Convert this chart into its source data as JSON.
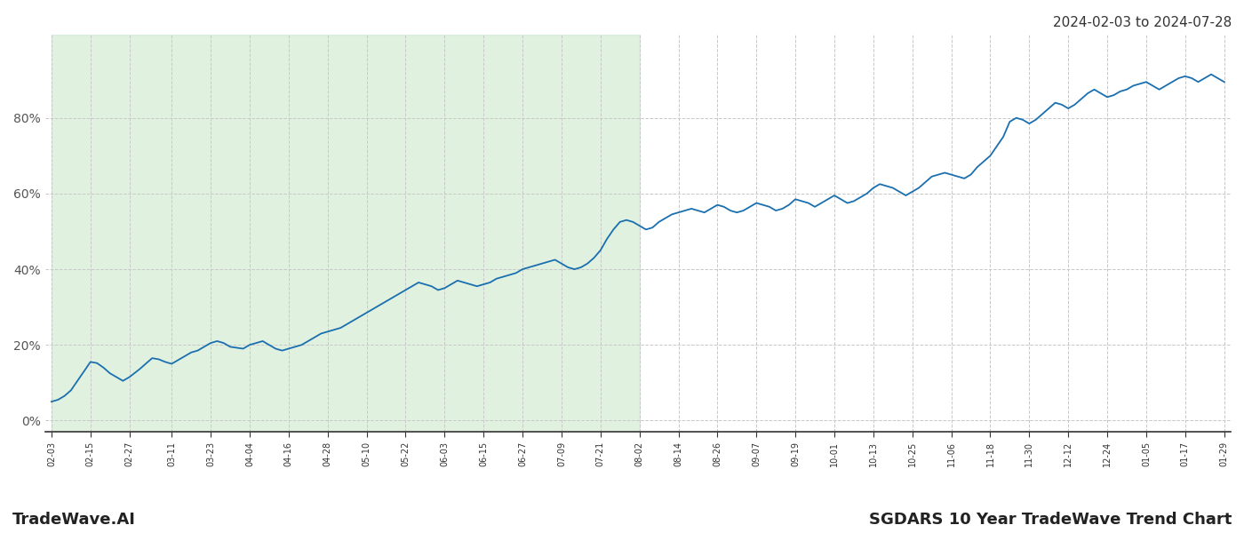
{
  "title_bottom": "SGDARS 10 Year TradeWave Trend Chart",
  "title_top_right": "2024-02-03 to 2024-07-28",
  "watermark": "TradeWave.AI",
  "line_color": "#1a6faf",
  "line_width": 1.3,
  "shade_color": "#c8e6c8",
  "shade_alpha": 0.55,
  "background_color": "#ffffff",
  "grid_color": "#c8c8c8",
  "grid_style": "--",
  "ylim": [
    -3,
    102
  ],
  "yticks": [
    0,
    20,
    40,
    60,
    80
  ],
  "ytick_labels": [
    "0%",
    "20%",
    "40%",
    "60%",
    "80%"
  ],
  "shade_date_start": "2024-02-03",
  "shade_date_end": "2024-08-02",
  "date_start": "2024-02-03",
  "date_end": "2025-01-29",
  "tick_interval_days": 6,
  "y_values_dates": [
    "2024-02-03",
    "2024-02-05",
    "2024-02-07",
    "2024-02-09",
    "2024-02-11",
    "2024-02-13",
    "2024-02-15",
    "2024-02-17",
    "2024-02-19",
    "2024-02-21",
    "2024-02-23",
    "2024-02-25",
    "2024-02-27",
    "2024-03-01",
    "2024-03-03",
    "2024-03-05",
    "2024-03-07",
    "2024-03-09",
    "2024-03-11",
    "2024-03-13",
    "2024-03-15",
    "2024-03-17",
    "2024-03-19",
    "2024-03-21",
    "2024-03-23",
    "2024-03-25",
    "2024-03-27",
    "2024-03-29",
    "2024-04-02",
    "2024-04-04",
    "2024-04-06",
    "2024-04-08",
    "2024-04-10",
    "2024-04-12",
    "2024-04-14",
    "2024-04-16",
    "2024-04-18",
    "2024-04-20",
    "2024-04-22",
    "2024-04-24",
    "2024-04-26",
    "2024-04-28",
    "2024-04-30",
    "2024-05-02",
    "2024-05-04",
    "2024-05-06",
    "2024-05-08",
    "2024-05-10",
    "2024-05-12",
    "2024-05-14",
    "2024-05-16",
    "2024-05-18",
    "2024-05-20",
    "2024-05-22",
    "2024-05-24",
    "2024-05-26",
    "2024-05-28",
    "2024-05-30",
    "2024-06-01",
    "2024-06-03",
    "2024-06-05",
    "2024-06-07",
    "2024-06-09",
    "2024-06-11",
    "2024-06-13",
    "2024-06-15",
    "2024-06-17",
    "2024-06-19",
    "2024-06-21",
    "2024-06-23",
    "2024-06-25",
    "2024-06-27",
    "2024-06-29",
    "2024-07-01",
    "2024-07-03",
    "2024-07-05",
    "2024-07-07",
    "2024-07-09",
    "2024-07-11",
    "2024-07-13",
    "2024-07-15",
    "2024-07-17",
    "2024-07-19",
    "2024-07-21",
    "2024-07-23",
    "2024-07-25",
    "2024-07-27",
    "2024-07-29",
    "2024-07-31",
    "2024-08-02",
    "2024-08-04",
    "2024-08-06",
    "2024-08-08",
    "2024-08-10",
    "2024-08-12",
    "2024-08-14",
    "2024-08-16",
    "2024-08-18",
    "2024-08-20",
    "2024-08-22",
    "2024-08-24",
    "2024-08-26",
    "2024-08-28",
    "2024-08-30",
    "2024-09-01",
    "2024-09-03",
    "2024-09-05",
    "2024-09-07",
    "2024-09-09",
    "2024-09-11",
    "2024-09-13",
    "2024-09-15",
    "2024-09-17",
    "2024-09-19",
    "2024-09-21",
    "2024-09-23",
    "2024-09-25",
    "2024-09-27",
    "2024-09-29",
    "2024-10-01",
    "2024-10-03",
    "2024-10-05",
    "2024-10-07",
    "2024-10-09",
    "2024-10-11",
    "2024-10-13",
    "2024-10-15",
    "2024-10-17",
    "2024-10-19",
    "2024-10-21",
    "2024-10-23",
    "2024-10-25",
    "2024-10-27",
    "2024-10-29",
    "2024-10-31",
    "2024-11-02",
    "2024-11-04",
    "2024-11-06",
    "2024-11-08",
    "2024-11-10",
    "2024-11-12",
    "2024-11-14",
    "2024-11-16",
    "2024-11-18",
    "2024-11-20",
    "2024-11-22",
    "2024-11-24",
    "2024-11-26",
    "2024-11-28",
    "2024-11-30",
    "2024-12-02",
    "2024-12-04",
    "2024-12-06",
    "2024-12-08",
    "2024-12-10",
    "2024-12-12",
    "2024-12-14",
    "2024-12-16",
    "2024-12-18",
    "2024-12-20",
    "2024-12-22",
    "2024-12-24",
    "2024-12-26",
    "2024-12-28",
    "2024-12-30",
    "2025-01-01",
    "2025-01-03",
    "2025-01-05",
    "2025-01-07",
    "2025-01-09",
    "2025-01-11",
    "2025-01-13",
    "2025-01-15",
    "2025-01-17",
    "2025-01-19",
    "2025-01-21",
    "2025-01-23",
    "2025-01-25",
    "2025-01-27",
    "2025-01-29"
  ],
  "y_values": [
    5.0,
    5.5,
    6.5,
    8.0,
    10.5,
    13.0,
    15.5,
    15.2,
    14.0,
    12.5,
    11.5,
    10.5,
    11.5,
    13.5,
    15.0,
    16.5,
    16.2,
    15.5,
    15.0,
    16.0,
    17.0,
    18.0,
    18.5,
    19.5,
    20.5,
    21.0,
    20.5,
    19.5,
    19.0,
    20.0,
    20.5,
    21.0,
    20.0,
    19.0,
    18.5,
    19.0,
    19.5,
    20.0,
    21.0,
    22.0,
    23.0,
    23.5,
    24.0,
    24.5,
    25.5,
    26.5,
    27.5,
    28.5,
    29.5,
    30.5,
    31.5,
    32.5,
    33.5,
    34.5,
    35.5,
    36.5,
    36.0,
    35.5,
    34.5,
    35.0,
    36.0,
    37.0,
    36.5,
    36.0,
    35.5,
    36.0,
    36.5,
    37.5,
    38.0,
    38.5,
    39.0,
    40.0,
    40.5,
    41.0,
    41.5,
    42.0,
    42.5,
    41.5,
    40.5,
    40.0,
    40.5,
    41.5,
    43.0,
    45.0,
    48.0,
    50.5,
    52.5,
    53.0,
    52.5,
    51.5,
    50.5,
    51.0,
    52.5,
    53.5,
    54.5,
    55.0,
    55.5,
    56.0,
    55.5,
    55.0,
    56.0,
    57.0,
    56.5,
    55.5,
    55.0,
    55.5,
    56.5,
    57.5,
    57.0,
    56.5,
    55.5,
    56.0,
    57.0,
    58.5,
    58.0,
    57.5,
    56.5,
    57.5,
    58.5,
    59.5,
    58.5,
    57.5,
    58.0,
    59.0,
    60.0,
    61.5,
    62.5,
    62.0,
    61.5,
    60.5,
    59.5,
    60.5,
    61.5,
    63.0,
    64.5,
    65.0,
    65.5,
    65.0,
    64.5,
    64.0,
    65.0,
    67.0,
    68.5,
    70.0,
    72.5,
    75.0,
    79.0,
    80.0,
    79.5,
    78.5,
    79.5,
    81.0,
    82.5,
    84.0,
    83.5,
    82.5,
    83.5,
    85.0,
    86.5,
    87.5,
    86.5,
    85.5,
    86.0,
    87.0,
    87.5,
    88.5,
    89.0,
    89.5,
    88.5,
    87.5,
    88.5,
    89.5,
    90.5,
    91.0,
    90.5,
    89.5,
    90.5,
    91.5,
    90.5,
    89.5
  ],
  "x_tick_dates": [
    "2024-02-03",
    "2024-02-15",
    "2024-02-27",
    "2024-03-11",
    "2024-03-23",
    "2024-04-04",
    "2024-04-16",
    "2024-04-28",
    "2024-05-10",
    "2024-05-22",
    "2024-06-03",
    "2024-06-15",
    "2024-06-27",
    "2024-07-09",
    "2024-07-21",
    "2024-08-02",
    "2024-08-14",
    "2024-08-26",
    "2024-09-07",
    "2024-09-19",
    "2024-10-01",
    "2024-10-13",
    "2024-10-25",
    "2024-11-06",
    "2024-11-18",
    "2024-11-30",
    "2024-12-12",
    "2024-12-24",
    "2025-01-05",
    "2025-01-17",
    "2025-01-29"
  ],
  "x_tick_labels": [
    "02-03",
    "02-15",
    "02-27",
    "03-11",
    "03-23",
    "04-04",
    "04-16",
    "04-28",
    "05-10",
    "05-22",
    "06-03",
    "06-15",
    "06-27",
    "07-09",
    "07-21",
    "08-02",
    "08-14",
    "08-26",
    "09-07",
    "09-19",
    "10-01",
    "10-13",
    "10-25",
    "11-06",
    "11-18",
    "11-30",
    "12-12",
    "12-24",
    "01-05",
    "01-17",
    "01-29"
  ]
}
